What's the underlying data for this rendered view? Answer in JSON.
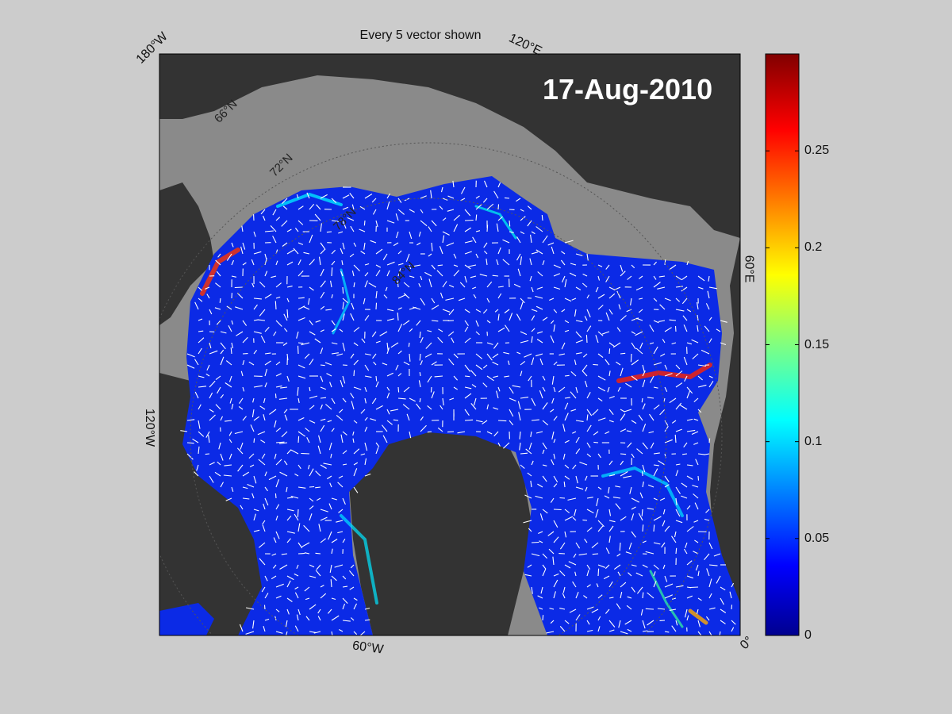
{
  "title": "Every 5 vector shown",
  "date": "17-Aug-2010",
  "colors": {
    "background": "#cccccc",
    "land": "#333333",
    "shelf": "#8a8a8a",
    "ocean_low": "#0b1fe0",
    "vector": "#ffffff"
  },
  "longitude_labels": {
    "top_left": "180°W",
    "top_right": "120°E",
    "right": "60°E",
    "bottom_right": "0°",
    "bottom": "60°W",
    "left": "120°W"
  },
  "latitude_labels": [
    "66°N",
    "72°N",
    "78°N",
    "84°N"
  ],
  "colorbar": {
    "min": 0,
    "max": 0.3,
    "ticks": [
      "0",
      "0.05",
      "0.1",
      "0.15",
      "0.2",
      "0.25"
    ],
    "colormap": "jet"
  }
}
